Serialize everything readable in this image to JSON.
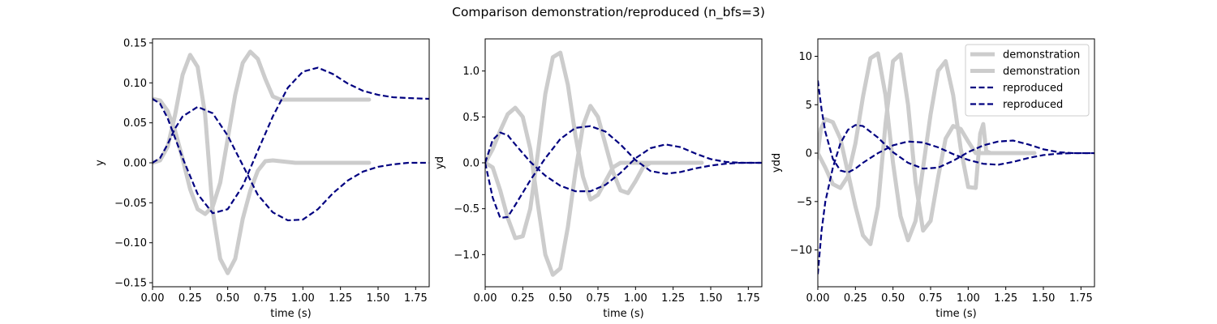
{
  "title": "Comparison demonstration/reproduced  (n_bfs=3)",
  "colors": {
    "demonstration": "#cccccc",
    "reproduced": "#000080"
  },
  "legend": {
    "placement": "upper right of third panel",
    "entries": [
      {
        "label": "demonstration",
        "style": "solid"
      },
      {
        "label": "demonstration",
        "style": "solid"
      },
      {
        "label": "reproduced",
        "style": "dashed"
      },
      {
        "label": "reproduced",
        "style": "dashed"
      }
    ]
  },
  "chart_data": [
    {
      "type": "line",
      "xlabel": "time (s)",
      "ylabel": "y",
      "xlim": [
        0,
        1.84
      ],
      "ylim": [
        -0.155,
        0.155
      ],
      "xticks": [
        0,
        0.25,
        0.5,
        0.75,
        1.0,
        1.25,
        1.5,
        1.75
      ],
      "xtick_labels": [
        "0.00",
        "0.25",
        "0.50",
        "0.75",
        "1.00",
        "1.25",
        "1.50",
        "1.75"
      ],
      "yticks": [
        -0.15,
        -0.1,
        -0.05,
        0,
        0.05,
        0.1,
        0.15
      ],
      "ytick_labels": [
        "−0.15",
        "−0.10",
        "−0.05",
        "0.00",
        "0.05",
        "0.10",
        "0.15"
      ],
      "series": [
        {
          "name": "demonstration",
          "style": "solid",
          "x": [
            0,
            0.05,
            0.1,
            0.15,
            0.2,
            0.25,
            0.3,
            0.35,
            0.4,
            0.45,
            0.5,
            0.55,
            0.6,
            0.65,
            0.7,
            0.75,
            0.8,
            0.85,
            0.9,
            0.95,
            1.0,
            1.05,
            1.1,
            1.15,
            1.2,
            1.3,
            1.44
          ],
          "y": [
            0.08,
            0.078,
            0.065,
            0.04,
            0.005,
            -0.033,
            -0.058,
            -0.064,
            -0.055,
            -0.025,
            0.03,
            0.085,
            0.125,
            0.139,
            0.13,
            0.105,
            0.083,
            0.079,
            0.079,
            0.079,
            0.079,
            0.079,
            0.079,
            0.079,
            0.079,
            0.079,
            0.079
          ]
        },
        {
          "name": "demonstration",
          "style": "solid",
          "x": [
            0,
            0.05,
            0.1,
            0.15,
            0.2,
            0.25,
            0.3,
            0.35,
            0.4,
            0.45,
            0.5,
            0.55,
            0.6,
            0.65,
            0.7,
            0.75,
            0.8,
            0.85,
            0.9,
            0.95,
            1.0,
            1.05,
            1.1,
            1.15,
            1.2,
            1.3,
            1.44
          ],
          "y": [
            0.0,
            0.003,
            0.02,
            0.06,
            0.11,
            0.135,
            0.12,
            0.06,
            -0.06,
            -0.12,
            -0.138,
            -0.12,
            -0.07,
            -0.035,
            -0.01,
            0.002,
            0.003,
            0.002,
            0.001,
            0.0,
            0.0,
            0.0,
            0.0,
            0.0,
            0.0,
            0.0,
            0.0
          ]
        },
        {
          "name": "reproduced",
          "style": "dashed",
          "x": [
            0,
            0.05,
            0.1,
            0.15,
            0.2,
            0.3,
            0.4,
            0.5,
            0.6,
            0.7,
            0.8,
            0.9,
            1.0,
            1.1,
            1.2,
            1.3,
            1.4,
            1.5,
            1.6,
            1.7,
            1.84
          ],
          "y": [
            0.08,
            0.074,
            0.056,
            0.031,
            0.006,
            -0.039,
            -0.063,
            -0.058,
            -0.029,
            0.015,
            0.058,
            0.094,
            0.114,
            0.119,
            0.111,
            0.099,
            0.09,
            0.085,
            0.082,
            0.081,
            0.08
          ]
        },
        {
          "name": "reproduced",
          "style": "dashed",
          "x": [
            0,
            0.05,
            0.1,
            0.15,
            0.2,
            0.3,
            0.4,
            0.5,
            0.6,
            0.7,
            0.8,
            0.9,
            1.0,
            1.1,
            1.2,
            1.3,
            1.4,
            1.5,
            1.6,
            1.7,
            1.84
          ],
          "y": [
            0.0,
            0.006,
            0.023,
            0.043,
            0.058,
            0.07,
            0.062,
            0.034,
            -0.003,
            -0.04,
            -0.062,
            -0.072,
            -0.071,
            -0.058,
            -0.038,
            -0.022,
            -0.011,
            -0.005,
            -0.002,
            0.0,
            0.0
          ]
        }
      ]
    },
    {
      "type": "line",
      "xlabel": "time (s)",
      "ylabel": "yd",
      "xlim": [
        0,
        1.84
      ],
      "ylim": [
        -1.35,
        1.35
      ],
      "xticks": [
        0,
        0.25,
        0.5,
        0.75,
        1.0,
        1.25,
        1.5,
        1.75
      ],
      "xtick_labels": [
        "0.00",
        "0.25",
        "0.50",
        "0.75",
        "1.00",
        "1.25",
        "1.50",
        "1.75"
      ],
      "yticks": [
        -1.0,
        -0.5,
        0,
        0.5,
        1.0
      ],
      "ytick_labels": [
        "−1.0",
        "−0.5",
        "0.0",
        "0.5",
        "1.0"
      ],
      "series": [
        {
          "name": "demonstration",
          "style": "solid",
          "x": [
            0,
            0.05,
            0.1,
            0.15,
            0.2,
            0.25,
            0.3,
            0.35,
            0.4,
            0.45,
            0.5,
            0.55,
            0.6,
            0.65,
            0.7,
            0.75,
            0.8,
            0.85,
            0.9,
            0.95,
            1.0,
            1.05,
            1.1,
            1.2,
            1.3,
            1.44
          ],
          "y": [
            0.0,
            0.15,
            0.35,
            0.53,
            0.6,
            0.5,
            0.15,
            -0.45,
            -1.0,
            -1.22,
            -1.15,
            -0.7,
            -0.1,
            0.4,
            0.62,
            0.5,
            0.2,
            -0.1,
            -0.3,
            -0.33,
            -0.2,
            -0.05,
            0.0,
            0.0,
            0.0,
            0.0
          ]
        },
        {
          "name": "demonstration",
          "style": "solid",
          "x": [
            0,
            0.05,
            0.1,
            0.15,
            0.2,
            0.25,
            0.3,
            0.35,
            0.4,
            0.45,
            0.5,
            0.55,
            0.6,
            0.65,
            0.7,
            0.75,
            0.8,
            0.85,
            0.9,
            0.95,
            1.0,
            1.05,
            1.1,
            1.2,
            1.3,
            1.44
          ],
          "y": [
            0.0,
            -0.05,
            -0.3,
            -0.6,
            -0.82,
            -0.8,
            -0.5,
            0.1,
            0.75,
            1.15,
            1.2,
            0.85,
            0.3,
            -0.15,
            -0.4,
            -0.35,
            -0.2,
            -0.05,
            0.0,
            0.0,
            0.0,
            0.0,
            0.0,
            0.0,
            0.0,
            0.0
          ]
        },
        {
          "name": "reproduced",
          "style": "dashed",
          "x": [
            0,
            0.05,
            0.1,
            0.15,
            0.2,
            0.3,
            0.4,
            0.5,
            0.6,
            0.7,
            0.8,
            0.9,
            1.0,
            1.1,
            1.2,
            1.3,
            1.4,
            1.5,
            1.6,
            1.7,
            1.84
          ],
          "y": [
            0.0,
            -0.38,
            -0.6,
            -0.59,
            -0.46,
            -0.19,
            0.05,
            0.26,
            0.38,
            0.4,
            0.34,
            0.2,
            0.03,
            -0.09,
            -0.12,
            -0.1,
            -0.06,
            -0.03,
            -0.01,
            0.0,
            0.0
          ]
        },
        {
          "name": "reproduced",
          "style": "dashed",
          "x": [
            0,
            0.05,
            0.1,
            0.15,
            0.2,
            0.3,
            0.4,
            0.5,
            0.6,
            0.7,
            0.8,
            0.9,
            1.0,
            1.1,
            1.2,
            1.3,
            1.4,
            1.5,
            1.6,
            1.7,
            1.84
          ],
          "y": [
            0.0,
            0.25,
            0.33,
            0.3,
            0.2,
            0.01,
            -0.14,
            -0.25,
            -0.31,
            -0.31,
            -0.24,
            -0.11,
            0.05,
            0.16,
            0.2,
            0.17,
            0.1,
            0.04,
            0.01,
            0.0,
            0.0
          ]
        }
      ]
    },
    {
      "type": "line",
      "xlabel": "time (s)",
      "ylabel": "ydd",
      "xlim": [
        0,
        1.84
      ],
      "ylim": [
        -13.8,
        11.8
      ],
      "xticks": [
        0,
        0.25,
        0.5,
        0.75,
        1.0,
        1.25,
        1.5,
        1.75
      ],
      "xtick_labels": [
        "0.00",
        "0.25",
        "0.50",
        "0.75",
        "1.00",
        "1.25",
        "1.50",
        "1.75"
      ],
      "yticks": [
        -10,
        -5,
        0,
        5,
        10
      ],
      "ytick_labels": [
        "−10",
        "−5",
        "0",
        "5",
        "10"
      ],
      "series": [
        {
          "name": "demonstration",
          "style": "solid",
          "x": [
            0,
            0.02,
            0.05,
            0.1,
            0.15,
            0.2,
            0.25,
            0.3,
            0.35,
            0.4,
            0.45,
            0.5,
            0.55,
            0.6,
            0.65,
            0.7,
            0.75,
            0.8,
            0.85,
            0.9,
            0.95,
            1.0,
            1.05,
            1.1,
            1.12,
            1.15,
            1.2,
            1.3,
            1.44
          ],
          "y": [
            0.0,
            2.5,
            3.5,
            3.2,
            1.5,
            -2.0,
            -5.5,
            -8.5,
            -9.4,
            -5.5,
            3.0,
            9.5,
            10.2,
            5.0,
            -3.0,
            -8.0,
            -7.0,
            -2.5,
            1.5,
            2.8,
            2.5,
            1.2,
            0.0,
            0.0,
            0.0,
            0.0,
            0.0,
            0.0,
            0.0
          ]
        },
        {
          "name": "demonstration",
          "style": "solid",
          "x": [
            0,
            0.05,
            0.1,
            0.15,
            0.2,
            0.25,
            0.3,
            0.35,
            0.4,
            0.45,
            0.5,
            0.55,
            0.6,
            0.65,
            0.7,
            0.75,
            0.8,
            0.85,
            0.9,
            0.95,
            1.0,
            1.05,
            1.08,
            1.1,
            1.12,
            1.15,
            1.2,
            1.3,
            1.44
          ],
          "y": [
            0.0,
            -1.5,
            -3.2,
            -3.6,
            -2.4,
            1.0,
            5.8,
            9.8,
            10.3,
            6.0,
            -1.0,
            -6.5,
            -9.0,
            -7.0,
            -1.5,
            4.0,
            8.5,
            9.5,
            6.0,
            0.5,
            -3.5,
            -3.6,
            2.0,
            3.0,
            0.2,
            0.0,
            0.0,
            0.0,
            0.0
          ]
        },
        {
          "name": "reproduced",
          "style": "dashed",
          "x": [
            0,
            0.025,
            0.05,
            0.1,
            0.15,
            0.2,
            0.25,
            0.3,
            0.4,
            0.5,
            0.6,
            0.7,
            0.8,
            0.9,
            1.0,
            1.1,
            1.2,
            1.3,
            1.4,
            1.5,
            1.6,
            1.7,
            1.84
          ],
          "y": [
            -12.5,
            -8.0,
            -5.0,
            -1.5,
            1.0,
            2.4,
            2.9,
            2.8,
            1.6,
            0.1,
            -1.0,
            -1.6,
            -1.5,
            -0.8,
            0.1,
            0.8,
            1.2,
            1.3,
            0.9,
            0.4,
            0.1,
            0.0,
            0.0
          ]
        },
        {
          "name": "reproduced",
          "style": "dashed",
          "x": [
            0,
            0.025,
            0.05,
            0.1,
            0.15,
            0.2,
            0.25,
            0.3,
            0.4,
            0.5,
            0.6,
            0.7,
            0.8,
            0.9,
            1.0,
            1.1,
            1.2,
            1.3,
            1.4,
            1.5,
            1.6,
            1.7,
            1.84
          ],
          "y": [
            7.5,
            4.5,
            2.2,
            -0.6,
            -1.8,
            -2.0,
            -1.6,
            -1.0,
            0.0,
            0.8,
            1.2,
            1.1,
            0.6,
            -0.1,
            -0.7,
            -1.1,
            -1.2,
            -0.9,
            -0.5,
            -0.2,
            -0.05,
            0.0,
            0.0
          ]
        }
      ]
    }
  ]
}
